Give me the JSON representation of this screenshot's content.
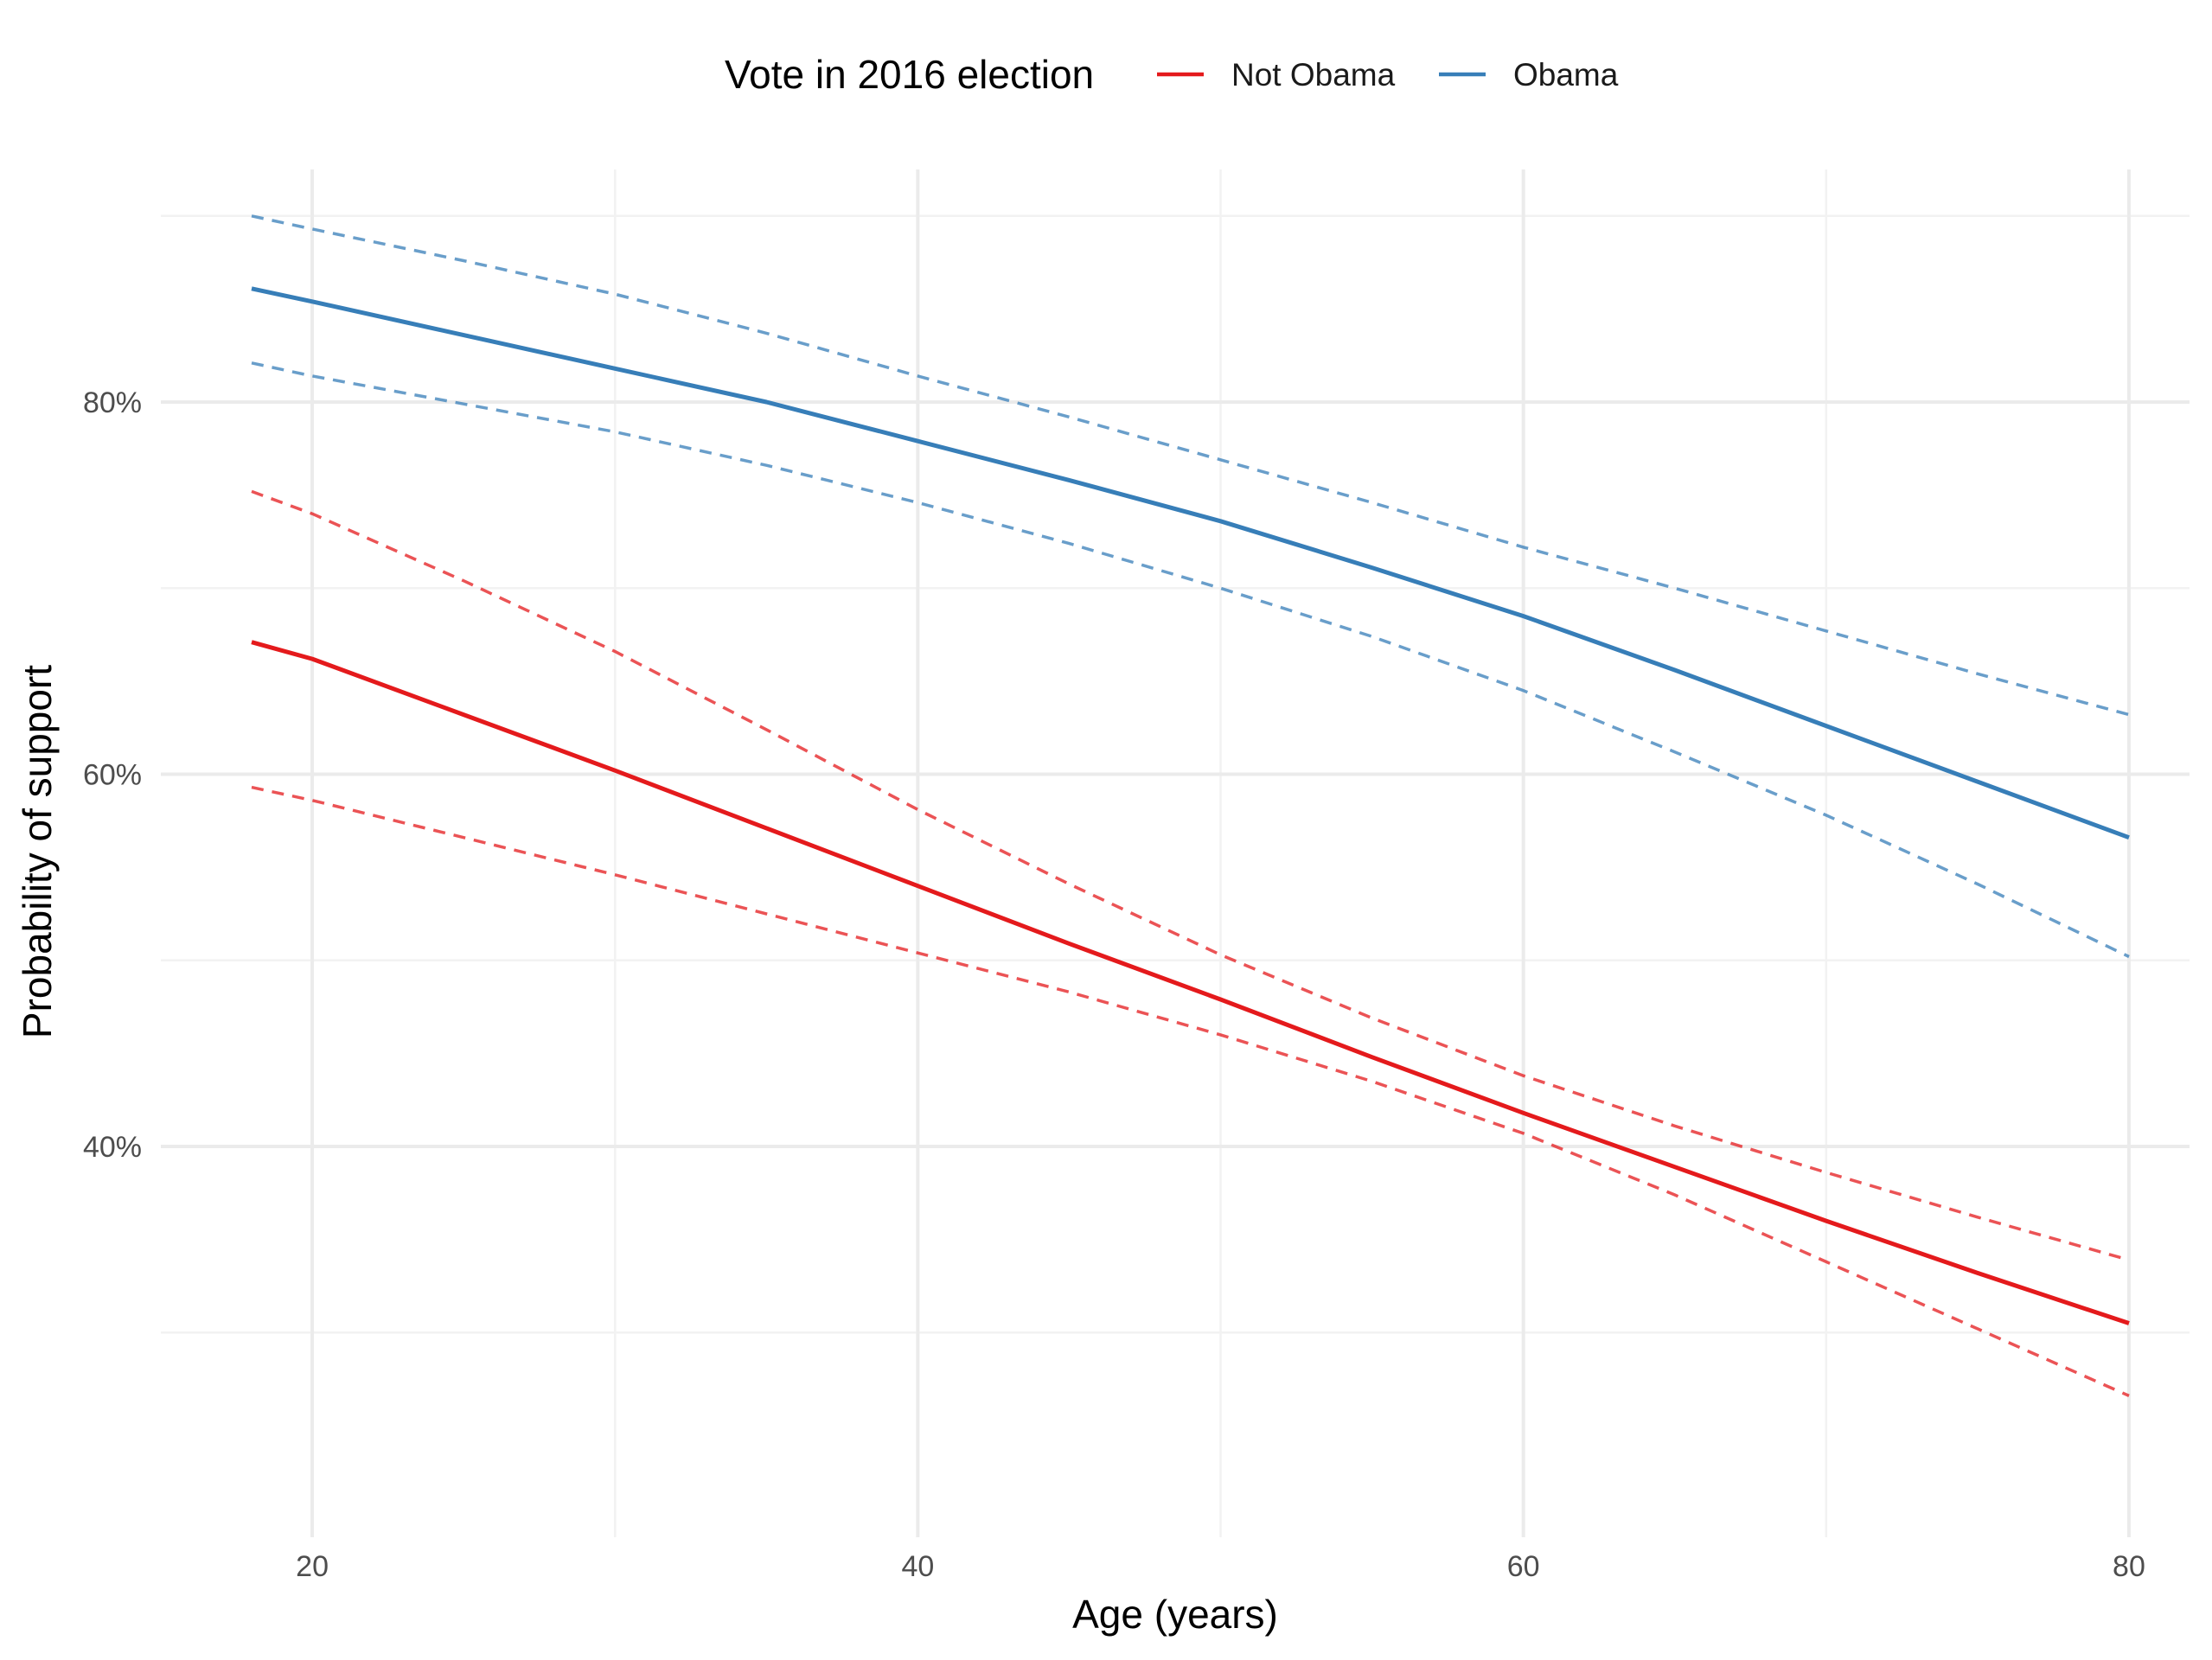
{
  "chart_data": {
    "type": "line",
    "xlabel": "Age (years)",
    "ylabel": "Probability of support",
    "xlim": [
      15,
      82
    ],
    "ylim": [
      0.19,
      0.925
    ],
    "x_ticks": [
      20,
      40,
      60,
      80
    ],
    "x_tick_labels": [
      "20",
      "40",
      "60",
      "80"
    ],
    "x_minor_ticks": [
      30,
      50,
      70
    ],
    "y_ticks": [
      0.4,
      0.6,
      0.8
    ],
    "y_tick_labels": [
      "40%",
      "60%",
      "80%"
    ],
    "y_minor_ticks": [
      0.3,
      0.5,
      0.7,
      0.9
    ],
    "grid": true,
    "legend": {
      "title": "Vote in 2016 election",
      "position": "top",
      "entries": [
        "Not Obama",
        "Obama"
      ]
    },
    "x": [
      18,
      20,
      25,
      30,
      35,
      40,
      45,
      50,
      55,
      60,
      65,
      70,
      75,
      80
    ],
    "series": [
      {
        "name": "Not Obama",
        "color": "#e41a1c",
        "values": [
          0.671,
          0.662,
          0.632,
          0.602,
          0.571,
          0.54,
          0.509,
          0.479,
          0.448,
          0.418,
          0.389,
          0.36,
          0.332,
          0.305
        ],
        "lower": [
          0.593,
          0.586,
          0.566,
          0.546,
          0.525,
          0.504,
          0.483,
          0.46,
          0.435,
          0.407,
          0.374,
          0.338,
          0.302,
          0.266
        ],
        "upper": [
          0.752,
          0.74,
          0.704,
          0.666,
          0.624,
          0.581,
          0.541,
          0.503,
          0.469,
          0.438,
          0.411,
          0.386,
          0.362,
          0.339
        ]
      },
      {
        "name": "Obama",
        "color": "#377eb8",
        "values": [
          0.861,
          0.854,
          0.836,
          0.818,
          0.8,
          0.779,
          0.758,
          0.736,
          0.711,
          0.685,
          0.656,
          0.626,
          0.596,
          0.566
        ],
        "lower": [
          0.821,
          0.814,
          0.799,
          0.784,
          0.766,
          0.746,
          0.724,
          0.7,
          0.674,
          0.645,
          0.612,
          0.578,
          0.541,
          0.502
        ],
        "upper": [
          0.9,
          0.893,
          0.876,
          0.858,
          0.837,
          0.814,
          0.792,
          0.769,
          0.746,
          0.722,
          0.7,
          0.677,
          0.654,
          0.632
        ]
      }
    ]
  }
}
